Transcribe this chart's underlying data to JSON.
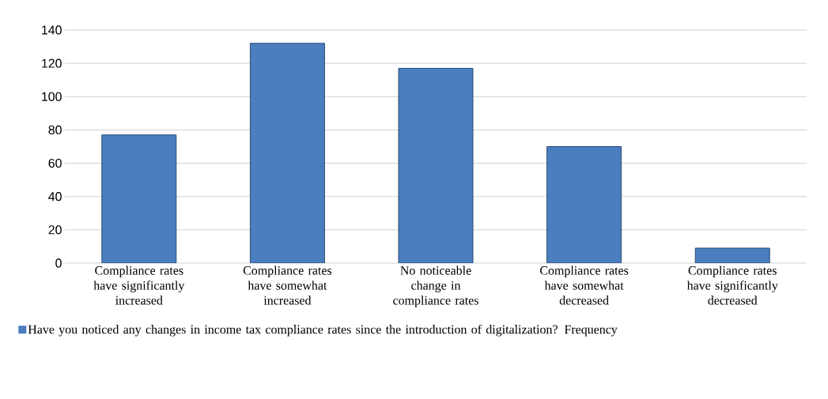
{
  "chart_data": {
    "type": "bar",
    "categories": [
      "Compliance rates have significantly increased",
      "Compliance rates have somewhat increased",
      "No noticeable change in compliance rates",
      "Compliance rates have somewhat decreased",
      "Compliance rates have significantly decreased"
    ],
    "series": [
      {
        "name": "Have you noticed any changes in income tax compliance rates since the introduction of digitalization? Frequency",
        "color": "#4a7ebf",
        "values": [
          77,
          132,
          117,
          70,
          9
        ]
      }
    ],
    "ylim": [
      0,
      140
    ],
    "yticks": [
      0,
      20,
      40,
      60,
      80,
      100,
      120,
      140
    ],
    "grid": "y",
    "legend": "bottom"
  }
}
